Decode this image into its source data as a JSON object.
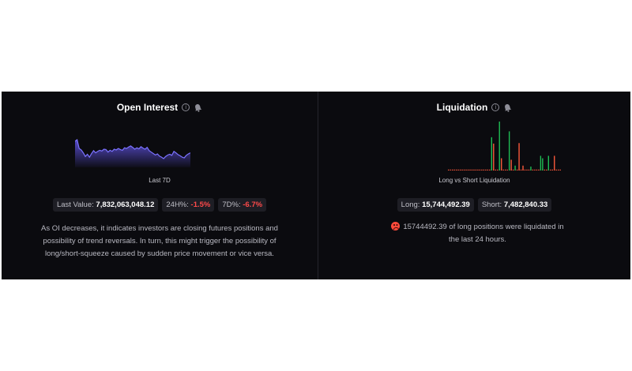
{
  "open_interest": {
    "title": "Open Interest",
    "info_icon": "info-icon",
    "bell_icon": "bell-icon",
    "chart_caption": "Last 7D",
    "last_value_label": "Last Value:",
    "last_value": "7,832,063,048.12",
    "change_24h_label": "24H%:",
    "change_24h": "-1.5%",
    "change_7d_label": "7D%:",
    "change_7d": "-6.7%",
    "description": "As OI decreases, it indicates investors are closing futures positions and possibility of trend reversals. In turn, this might trigger the possibility of long/short-squeeze caused by sudden price movement or vice versa.",
    "line_color": "#7b72ff",
    "fill_color": "#5b4fd6"
  },
  "liquidation": {
    "title": "Liquidation",
    "info_icon": "info-icon",
    "bell_icon": "bell-icon",
    "chart_caption": "Long vs Short Liquidation",
    "long_label": "Long:",
    "long_value": "15,744,492.39",
    "short_label": "Short:",
    "short_value": "7,482,840.33",
    "status_icon": "sad-face-icon",
    "message": "15744492.39 of long positions were liquidated in the last 24 hours.",
    "long_color": "#ff5a3c",
    "short_color": "#1fbf55"
  },
  "chart_data": [
    {
      "type": "area",
      "title": "Open Interest",
      "xlabel": "Last 7D",
      "ylabel": "",
      "grid": false,
      "values": [
        0.72,
        0.76,
        0.52,
        0.48,
        0.4,
        0.3,
        0.36,
        0.28,
        0.38,
        0.46,
        0.4,
        0.44,
        0.47,
        0.45,
        0.5,
        0.49,
        0.42,
        0.47,
        0.44,
        0.5,
        0.48,
        0.52,
        0.49,
        0.47,
        0.54,
        0.52,
        0.56,
        0.59,
        0.55,
        0.5,
        0.54,
        0.51,
        0.57,
        0.53,
        0.5,
        0.55,
        0.46,
        0.42,
        0.38,
        0.34,
        0.37,
        0.31,
        0.28,
        0.24,
        0.3,
        0.34,
        0.36,
        0.33,
        0.44,
        0.4,
        0.35,
        0.32,
        0.28,
        0.26,
        0.33,
        0.37,
        0.4
      ]
    },
    {
      "type": "bar",
      "title": "Long vs Short Liquidation",
      "xlabel": "",
      "ylabel": "",
      "grid": false,
      "series": [
        {
          "name": "Long",
          "values": [
            0.02,
            0.02,
            0.02,
            0.02,
            0.02,
            0.02,
            0.02,
            0.02,
            0.02,
            0.02,
            0.55,
            0.12,
            0.02,
            0.02,
            0.02,
            0.02,
            0.02,
            0.1,
            0.02,
            0.02,
            0.05,
            0.02,
            0.02,
            0.02,
            0.02,
            0.02,
            0.02,
            0.02,
            0.02,
            0.02,
            0.02,
            0.02,
            0.02,
            0.02,
            0.02,
            0.02,
            0.02,
            0.02,
            0.02,
            0.02,
            0.02,
            0.02,
            0.02,
            0.02,
            0.02,
            0.02,
            0.02,
            0.02,
            0.02,
            0.02,
            0.02,
            0.02,
            0.02,
            0.02,
            0.02,
            0.02,
            0.02,
            0.02
          ]
        },
        {
          "name": "Short",
          "values": [
            0.0,
            0.0,
            0.0,
            0.0,
            0.0,
            0.0,
            0.0,
            0.0,
            0.0,
            0.0,
            0.0,
            0.0,
            0.0,
            0.0,
            0.0,
            0.0,
            0.0,
            0.0,
            0.0,
            0.0,
            0.0,
            0.0,
            0.0,
            0.0,
            0.0,
            0.0,
            0.0,
            0.0,
            0.0,
            0.0,
            0.0,
            0.0,
            0.0,
            0.0,
            0.0,
            0.0,
            0.0,
            0.0,
            0.0,
            0.0,
            0.0,
            0.0,
            0.0,
            0.0,
            0.0,
            0.0,
            0.0,
            0.0,
            0.0,
            0.0,
            0.0,
            0.0,
            0.0,
            0.0,
            0.0,
            0.0,
            0.0,
            0.0
          ]
        }
      ]
    }
  ]
}
